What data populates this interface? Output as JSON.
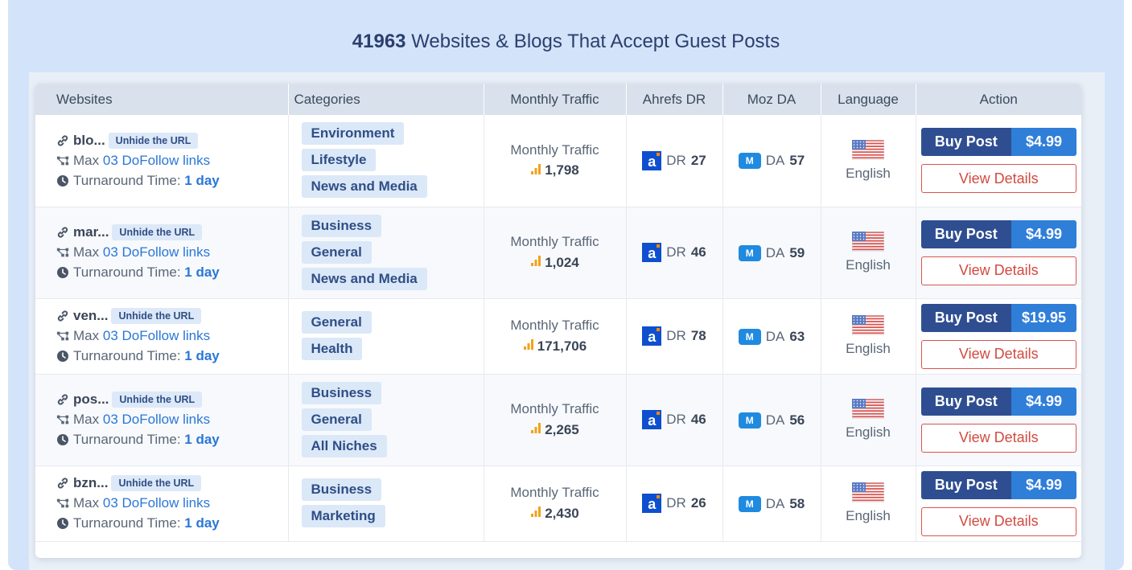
{
  "heading": {
    "count": "41963",
    "text": "Websites & Blogs That Accept Guest Posts"
  },
  "columns": {
    "websites": "Websites",
    "categories": "Categories",
    "traffic": "Monthly Traffic",
    "ahrefs": "Ahrefs DR",
    "moz": "Moz DA",
    "language": "Language",
    "action": "Action"
  },
  "labels": {
    "unhide": "Unhide the URL",
    "max": "Max",
    "dofollow": "03 DoFollow links",
    "turnaround": "Turnaround Time:",
    "turnaround_value": "1 day",
    "traffic": "Monthly Traffic",
    "dr": "DR",
    "da": "DA",
    "moz_badge": "M",
    "ahrefs_badge": "a",
    "buy": "Buy Post",
    "view": "View Details"
  },
  "rows": [
    {
      "site": "blo...",
      "categories": [
        "Environment",
        "Lifestyle",
        "News and Media"
      ],
      "traffic": "1,798",
      "dr": "27",
      "da": "57",
      "language": "English",
      "price": "$4.99"
    },
    {
      "site": "mar...",
      "categories": [
        "Business",
        "General",
        "News and Media"
      ],
      "traffic": "1,024",
      "dr": "46",
      "da": "59",
      "language": "English",
      "price": "$4.99"
    },
    {
      "site": "ven...",
      "categories": [
        "General",
        "Health"
      ],
      "traffic": "171,706",
      "dr": "78",
      "da": "63",
      "language": "English",
      "price": "$19.95"
    },
    {
      "site": "pos...",
      "categories": [
        "Business",
        "General",
        "All Niches"
      ],
      "traffic": "2,265",
      "dr": "46",
      "da": "56",
      "language": "English",
      "price": "$4.99"
    },
    {
      "site": "bzn...",
      "categories": [
        "Business",
        "Marketing"
      ],
      "traffic": "2,430",
      "dr": "26",
      "da": "58",
      "language": "English",
      "price": "$4.99"
    }
  ],
  "colors": {
    "brand": "#2f4e91",
    "accent": "#2f7ed8",
    "danger": "#d24a3f",
    "tag_bg": "#dbe8f8"
  }
}
